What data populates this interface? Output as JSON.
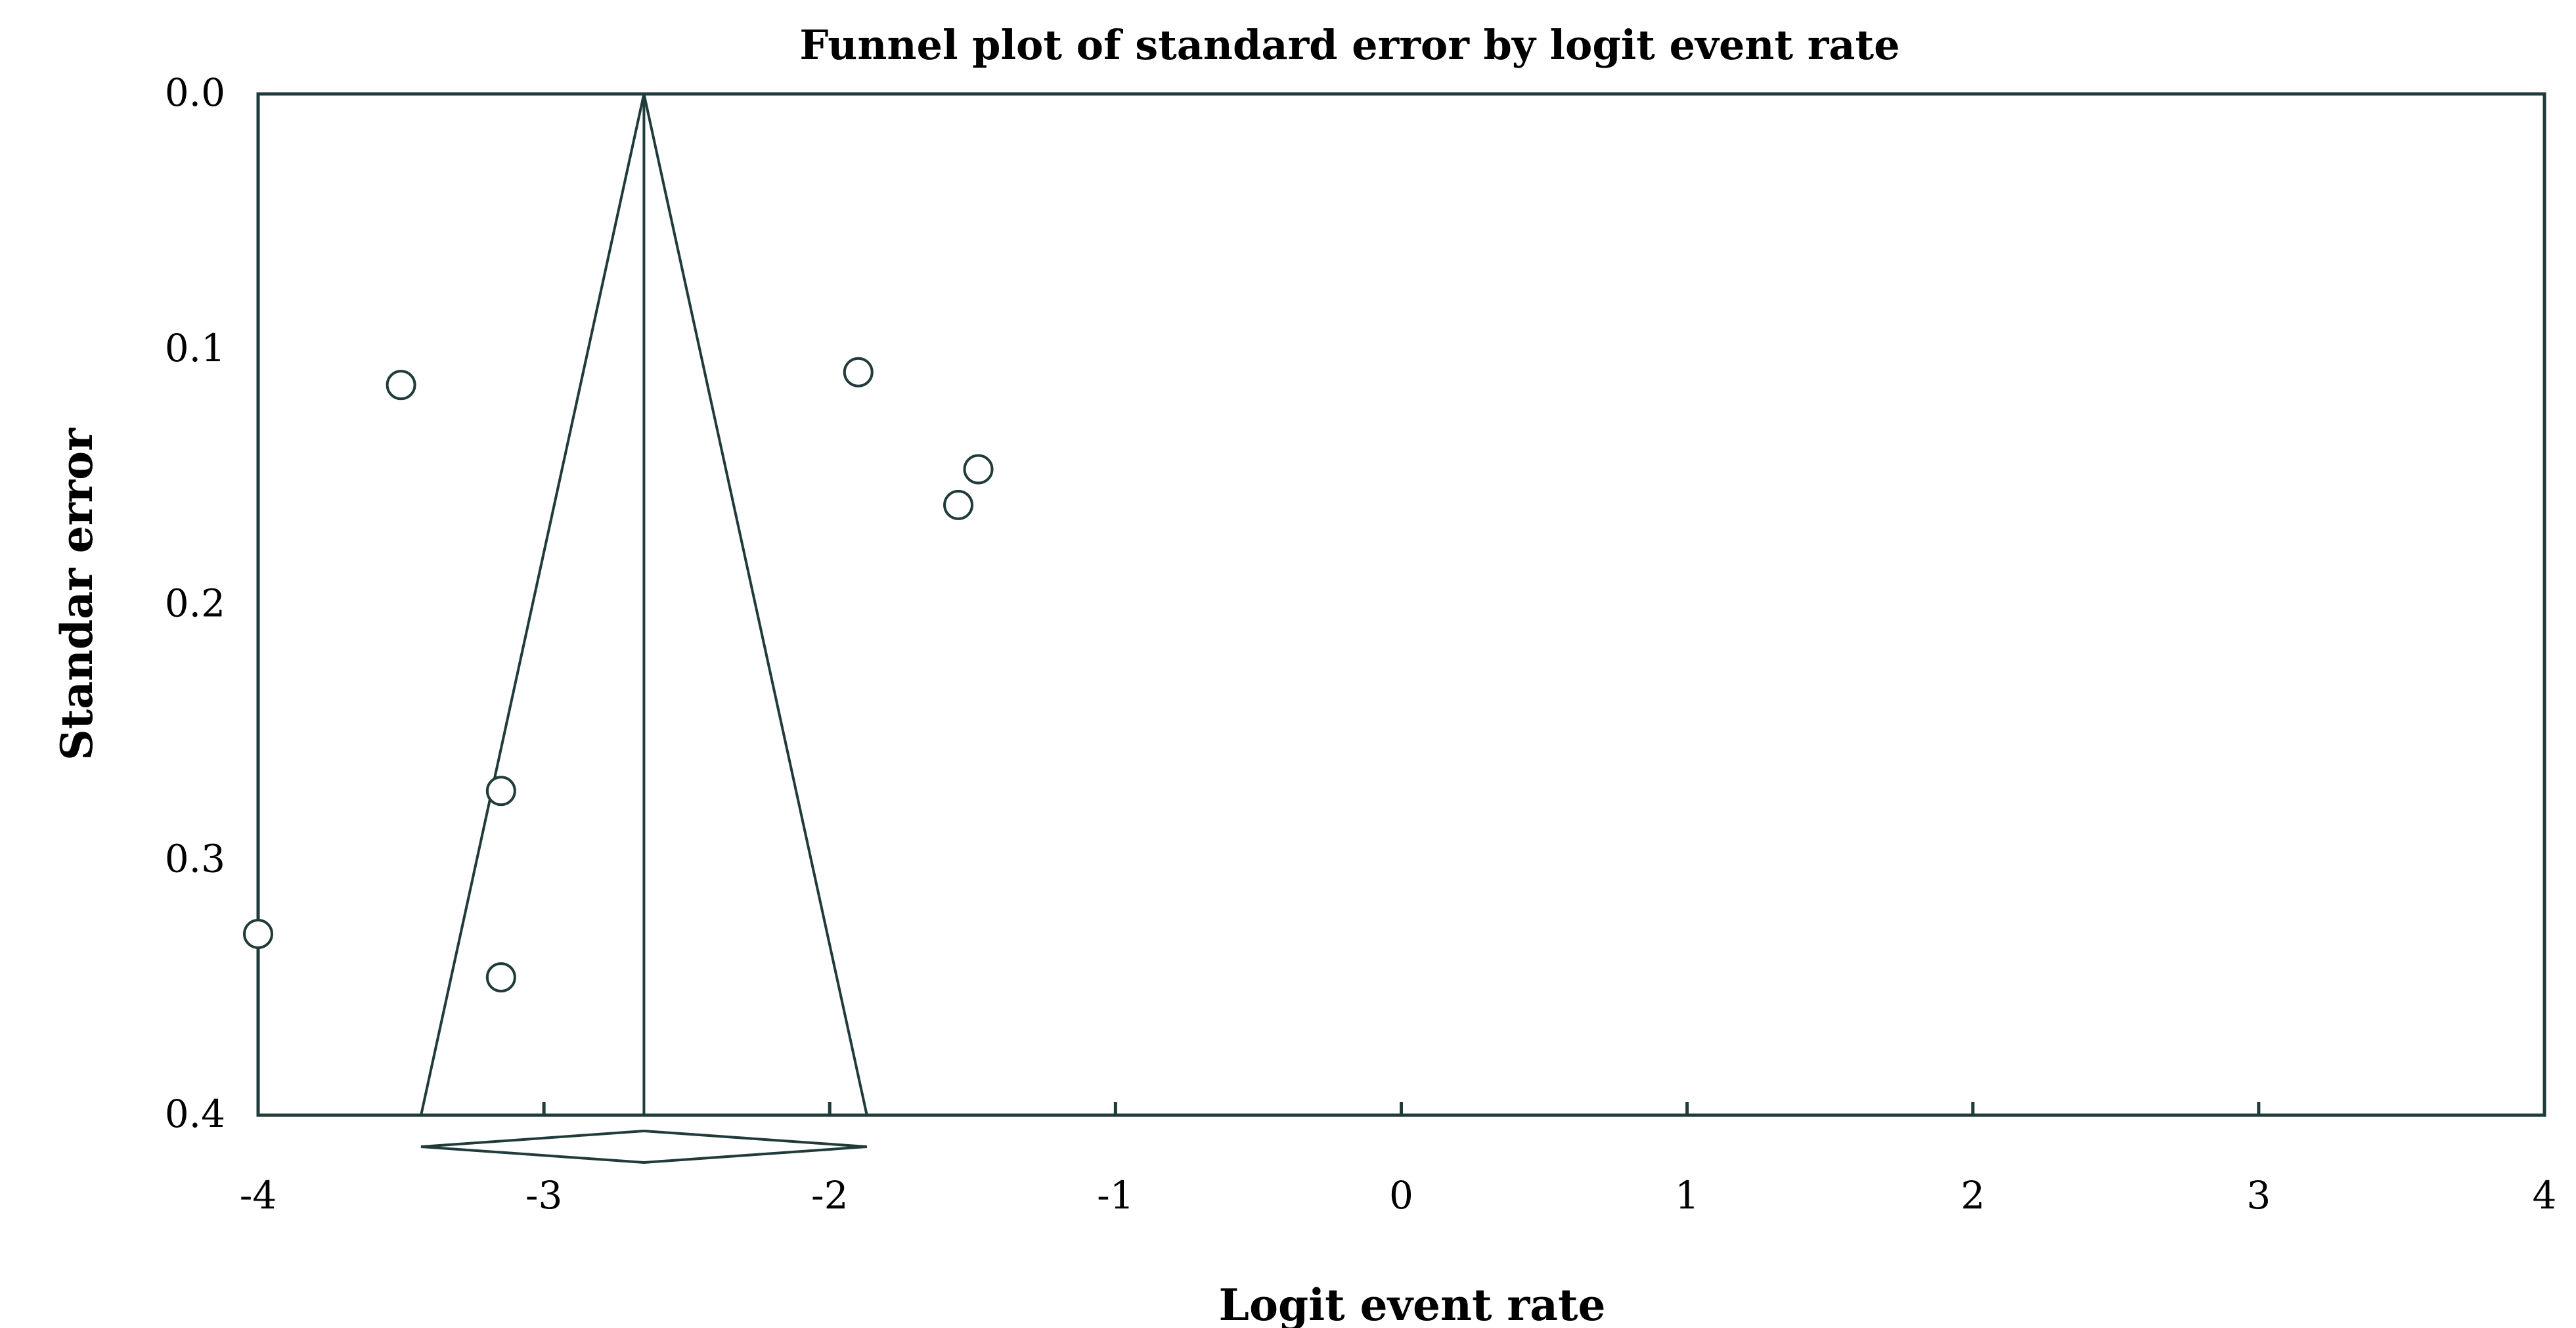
{
  "chart_data": {
    "type": "scatter",
    "title": "Funnel plot of standard error by logit event rate",
    "xlabel": "Logit event rate",
    "ylabel": "Standar error",
    "xlim": [
      -4,
      4
    ],
    "ylim": [
      0.0,
      0.4
    ],
    "y_inverted": true,
    "x_ticks": [
      -4,
      -3,
      -2,
      -1,
      0,
      1,
      2,
      3,
      4
    ],
    "x_tick_labels": [
      "-4",
      "-3",
      "-2",
      "-1",
      "0",
      "1",
      "2",
      "3",
      "4"
    ],
    "y_ticks": [
      0.0,
      0.1,
      0.2,
      0.3,
      0.4
    ],
    "y_tick_labels": [
      "0.0",
      "0.1",
      "0.2",
      "0.3",
      "0.4"
    ],
    "grid": false,
    "points": [
      {
        "x": -3.5,
        "y": 0.114
      },
      {
        "x": -1.9,
        "y": 0.109
      },
      {
        "x": -1.48,
        "y": 0.147
      },
      {
        "x": -1.55,
        "y": 0.161
      },
      {
        "x": -3.15,
        "y": 0.273
      },
      {
        "x": -4.0,
        "y": 0.329
      },
      {
        "x": -3.15,
        "y": 0.346
      }
    ],
    "pooled_estimate": -2.65,
    "funnel": {
      "apex": {
        "x": -2.65,
        "y": 0.0
      },
      "left_base": {
        "x": -3.43,
        "y": 0.4
      },
      "right_base": {
        "x": -1.87,
        "y": 0.4
      }
    },
    "summary_diamond": {
      "center": -2.65,
      "lower": -3.43,
      "upper": -1.87
    }
  }
}
